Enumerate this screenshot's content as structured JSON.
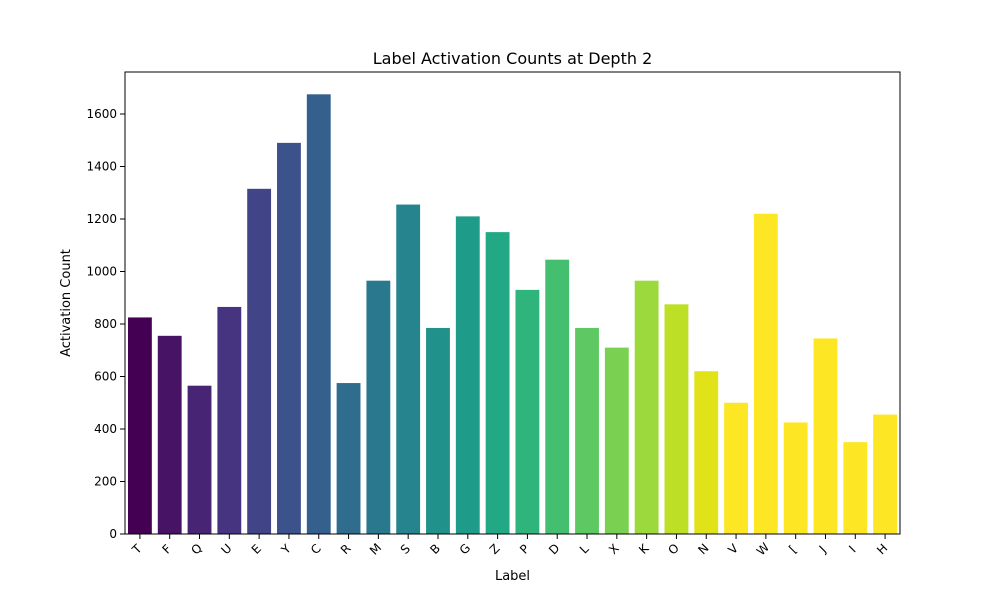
{
  "chart_data": {
    "type": "bar",
    "title": "Label Activation Counts at Depth 2",
    "xlabel": "Label",
    "ylabel": "Activation Count",
    "ylim": [
      0,
      1760
    ],
    "yticks": [
      0,
      200,
      400,
      600,
      800,
      1000,
      1200,
      1400,
      1600
    ],
    "grid": false,
    "categories": [
      "T",
      "F",
      "Q",
      "U",
      "E",
      "Y",
      "C",
      "R",
      "M",
      "S",
      "B",
      "G",
      "Z",
      "P",
      "D",
      "L",
      "X",
      "K",
      "O",
      "N",
      "V",
      "W",
      "[",
      "J",
      "I",
      "H"
    ],
    "values": [
      825,
      755,
      565,
      865,
      1315,
      1490,
      1675,
      575,
      965,
      1255,
      785,
      1210,
      1150,
      930,
      1045,
      785,
      710,
      965,
      875,
      620,
      500,
      1220,
      425,
      745,
      350,
      455
    ],
    "colors": [
      "#440154",
      "#471365",
      "#482475",
      "#463480",
      "#414487",
      "#3b528b",
      "#355f8d",
      "#2f6c8e",
      "#2a788e",
      "#25848e",
      "#21918c",
      "#1e9c89",
      "#22a884",
      "#2fb47c",
      "#44bf70",
      "#5ec962",
      "#7ad151",
      "#9bd93c",
      "#bddf26",
      "#dfe318",
      "#fde725",
      "#fde725",
      "#fde725",
      "#fde725",
      "#fde725",
      "#fde725"
    ]
  }
}
